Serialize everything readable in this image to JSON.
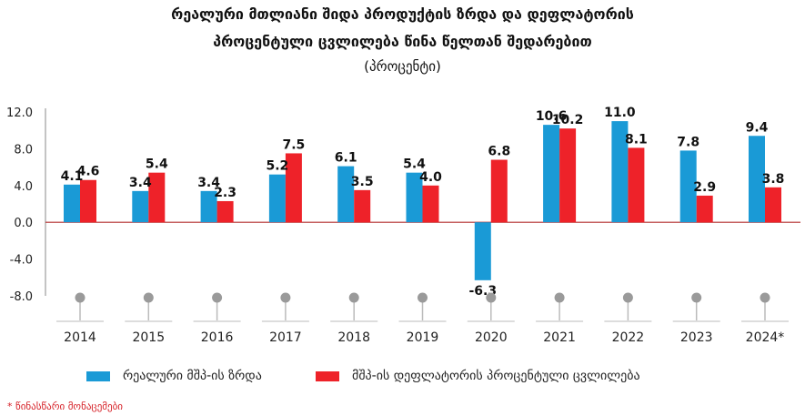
{
  "header": {
    "title_line1": "რეალური მთლიანი შიდა პროდუქტის ზრდა და დეფლატორის",
    "title_line2": "პროცენტული ცვლილება წინა წელთან შედარებით",
    "subtitle": "(პროცენტი)"
  },
  "footnote": "* წინასწარი მონაცემები",
  "colors": {
    "real_gdp": "#1a9ad6",
    "deflator": "#ee2229",
    "zero_line": "#b22a2a"
  },
  "chart_data": {
    "type": "bar",
    "categories": [
      "2014",
      "2015",
      "2016",
      "2017",
      "2018",
      "2019",
      "2020",
      "2021",
      "2022",
      "2023",
      "2024*"
    ],
    "series": [
      {
        "name": "რეალური მშპ-ის ზრდა",
        "values": [
          4.1,
          3.4,
          3.4,
          5.2,
          6.1,
          5.4,
          -6.3,
          10.6,
          11.0,
          7.8,
          9.4
        ]
      },
      {
        "name": "მშპ-ის დეფლატორის პროცენტული ცვლილება",
        "values": [
          4.6,
          5.4,
          2.3,
          7.5,
          3.5,
          4.0,
          6.8,
          10.2,
          8.1,
          2.9,
          3.8
        ]
      }
    ],
    "yticks": [
      "12.0",
      "8.0",
      "4.0",
      "0.0",
      "-4.0",
      "-8.0"
    ],
    "ylim": [
      -8,
      12
    ],
    "legend_position": "bottom"
  }
}
